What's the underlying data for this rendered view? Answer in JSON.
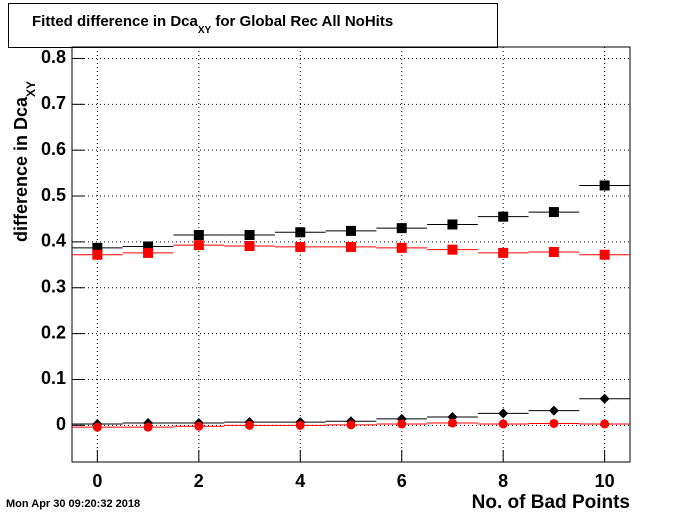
{
  "chart_data": {
    "type": "scatter",
    "title": {
      "main": "Fitted difference in Dca",
      "sub": "XY",
      "rest": " for Global Rec All NoHits"
    },
    "y_label": {
      "main": "difference in Dca",
      "sub": "XY"
    },
    "x_label": "No. of Bad Points",
    "timestamp": "Mon Apr 30 09:20:32 2018",
    "x": [
      0,
      1,
      2,
      3,
      4,
      5,
      6,
      7,
      8,
      9,
      10
    ],
    "series": [
      {
        "color": "#000000",
        "marker": "square",
        "values": [
          0.387,
          0.39,
          0.415,
          0.415,
          0.421,
          0.424,
          0.43,
          0.438,
          0.455,
          0.465,
          0.523
        ]
      },
      {
        "color": "#ff0000",
        "marker": "square",
        "values": [
          0.372,
          0.376,
          0.393,
          0.391,
          0.389,
          0.389,
          0.387,
          0.383,
          0.376,
          0.378,
          0.372
        ]
      },
      {
        "color": "#000000",
        "marker": "diamond",
        "values": [
          0.003,
          0.005,
          0.005,
          0.007,
          0.007,
          0.009,
          0.014,
          0.018,
          0.026,
          0.032,
          0.058
        ]
      },
      {
        "color": "#ff0000",
        "marker": "circle",
        "values": [
          -0.004,
          -0.004,
          -0.002,
          0.0,
          0.0,
          0.001,
          0.003,
          0.005,
          0.003,
          0.004,
          0.003
        ]
      }
    ],
    "xlim": [
      -0.5,
      10.5
    ],
    "xticks": [
      0,
      2,
      4,
      6,
      8,
      10
    ],
    "ylim": [
      -0.08,
      0.825
    ],
    "yticks": [
      0,
      0.1,
      0.2,
      0.3,
      0.4,
      0.5,
      0.6,
      0.7,
      0.8
    ],
    "grid": true
  }
}
